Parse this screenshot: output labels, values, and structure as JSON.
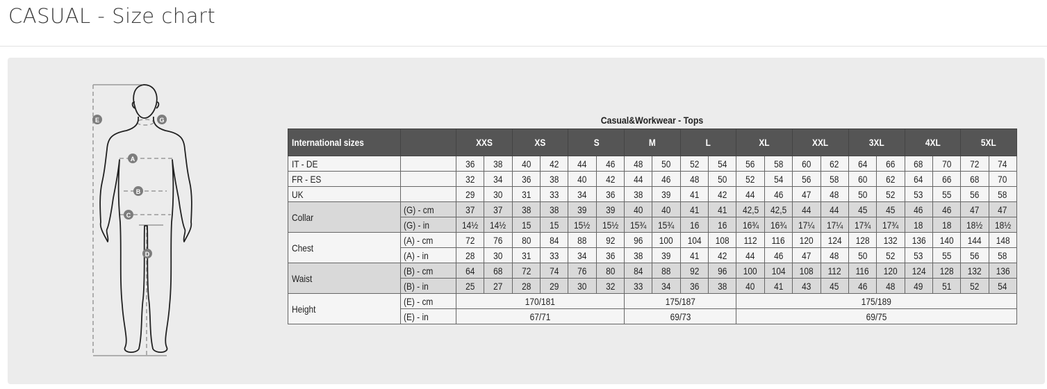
{
  "page": {
    "title": "CASUAL - Size chart"
  },
  "figure": {
    "markers": [
      "E",
      "G",
      "A",
      "B",
      "C",
      "D"
    ]
  },
  "table": {
    "title": "Casual&Workwear - Tops",
    "header": {
      "label": "International sizes",
      "sizes": [
        "XXS",
        "XS",
        "S",
        "M",
        "L",
        "XL",
        "XXL",
        "3XL",
        "4XL",
        "5XL"
      ]
    },
    "rows": [
      {
        "group": "IT - DE",
        "unit": "",
        "values": [
          "36",
          "38",
          "40",
          "42",
          "44",
          "46",
          "48",
          "50",
          "52",
          "54",
          "56",
          "58",
          "60",
          "62",
          "64",
          "66",
          "68",
          "70",
          "72",
          "74"
        ]
      },
      {
        "group": "FR - ES",
        "unit": "",
        "values": [
          "32",
          "34",
          "36",
          "38",
          "40",
          "42",
          "44",
          "46",
          "48",
          "50",
          "52",
          "54",
          "56",
          "58",
          "60",
          "62",
          "64",
          "66",
          "68",
          "70"
        ]
      },
      {
        "group": "UK",
        "unit": "",
        "values": [
          "29",
          "30",
          "31",
          "33",
          "34",
          "36",
          "38",
          "39",
          "41",
          "42",
          "44",
          "46",
          "47",
          "48",
          "50",
          "52",
          "53",
          "55",
          "56",
          "58"
        ]
      },
      {
        "group": "Collar",
        "unit": "(G) - cm",
        "values": [
          "37",
          "37",
          "38",
          "38",
          "39",
          "39",
          "40",
          "40",
          "41",
          "41",
          "42,5",
          "42,5",
          "44",
          "44",
          "45",
          "45",
          "46",
          "46",
          "47",
          "47"
        ]
      },
      {
        "group": "Collar",
        "unit": "(G)  - in",
        "values": [
          "14½",
          "14½",
          "15",
          "15",
          "15½",
          "15½",
          "15¾",
          "15¾",
          "16",
          "16",
          "16¾",
          "16¾",
          "17¼",
          "17¼",
          "17¾",
          "17¾",
          "18",
          "18",
          "18½",
          "18½"
        ]
      },
      {
        "group": "Chest",
        "unit": "(A) - cm",
        "values": [
          "72",
          "76",
          "80",
          "84",
          "88",
          "92",
          "96",
          "100",
          "104",
          "108",
          "112",
          "116",
          "120",
          "124",
          "128",
          "132",
          "136",
          "140",
          "144",
          "148"
        ]
      },
      {
        "group": "Chest",
        "unit": "(A) - in",
        "values": [
          "28",
          "30",
          "31",
          "33",
          "34",
          "36",
          "38",
          "39",
          "41",
          "42",
          "44",
          "46",
          "47",
          "48",
          "50",
          "52",
          "53",
          "55",
          "56",
          "58"
        ]
      },
      {
        "group": "Waist",
        "unit": "(B) - cm",
        "values": [
          "64",
          "68",
          "72",
          "74",
          "76",
          "80",
          "84",
          "88",
          "92",
          "96",
          "100",
          "104",
          "108",
          "112",
          "116",
          "120",
          "124",
          "128",
          "132",
          "136"
        ]
      },
      {
        "group": "Waist",
        "unit": "(B) - in",
        "values": [
          "25",
          "27",
          "28",
          "29",
          "30",
          "32",
          "33",
          "34",
          "36",
          "38",
          "40",
          "41",
          "43",
          "45",
          "46",
          "48",
          "49",
          "51",
          "52",
          "54"
        ]
      },
      {
        "group": "Height",
        "unit": "(E) - cm",
        "spans": [
          {
            "value": "170/181",
            "cols": 6
          },
          {
            "value": "175/187",
            "cols": 4
          },
          {
            "value": "175/189",
            "cols": 10
          }
        ]
      },
      {
        "group": "Height",
        "unit": "(E) - in",
        "spans": [
          {
            "value": "67/71",
            "cols": 6
          },
          {
            "value": "69/73",
            "cols": 4
          },
          {
            "value": "69/75",
            "cols": 10
          }
        ]
      }
    ]
  }
}
